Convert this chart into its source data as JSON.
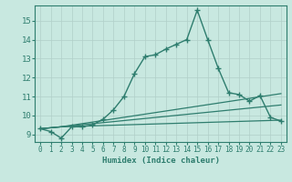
{
  "xlabel": "Humidex (Indice chaleur)",
  "bg_color": "#c8e8e0",
  "line_color": "#2e7d6e",
  "grid_color": "#b0cfc8",
  "xlim": [
    -0.5,
    23.5
  ],
  "ylim": [
    8.6,
    15.8
  ],
  "xticks": [
    0,
    1,
    2,
    3,
    4,
    5,
    6,
    7,
    8,
    9,
    10,
    11,
    12,
    13,
    14,
    15,
    16,
    17,
    18,
    19,
    20,
    21,
    22,
    23
  ],
  "yticks": [
    9,
    10,
    11,
    12,
    13,
    14,
    15
  ],
  "series": [
    {
      "x": [
        0,
        1,
        2,
        3,
        4,
        5,
        6,
        7,
        8,
        9,
        10,
        11,
        12,
        13,
        14,
        15,
        16,
        17,
        18,
        19,
        20,
        21,
        22,
        23
      ],
      "y": [
        9.3,
        9.15,
        8.8,
        9.4,
        9.4,
        9.5,
        9.8,
        10.3,
        11.0,
        12.2,
        13.1,
        13.2,
        13.5,
        13.75,
        14.0,
        15.55,
        14.0,
        12.5,
        11.2,
        11.1,
        10.75,
        11.05,
        9.9,
        9.7
      ],
      "marker": "+",
      "linestyle": "-",
      "linewidth": 1.0,
      "markersize": 4
    },
    {
      "x": [
        0,
        2,
        23
      ],
      "y": [
        9.3,
        9.4,
        9.75
      ],
      "marker": null,
      "linestyle": "-",
      "linewidth": 0.9,
      "markersize": 0
    },
    {
      "x": [
        0,
        2,
        23
      ],
      "y": [
        9.3,
        9.4,
        10.55
      ],
      "marker": null,
      "linestyle": "-",
      "linewidth": 0.9,
      "markersize": 0
    },
    {
      "x": [
        0,
        2,
        23
      ],
      "y": [
        9.3,
        9.4,
        11.15
      ],
      "marker": null,
      "linestyle": "-",
      "linewidth": 0.9,
      "markersize": 0
    }
  ]
}
